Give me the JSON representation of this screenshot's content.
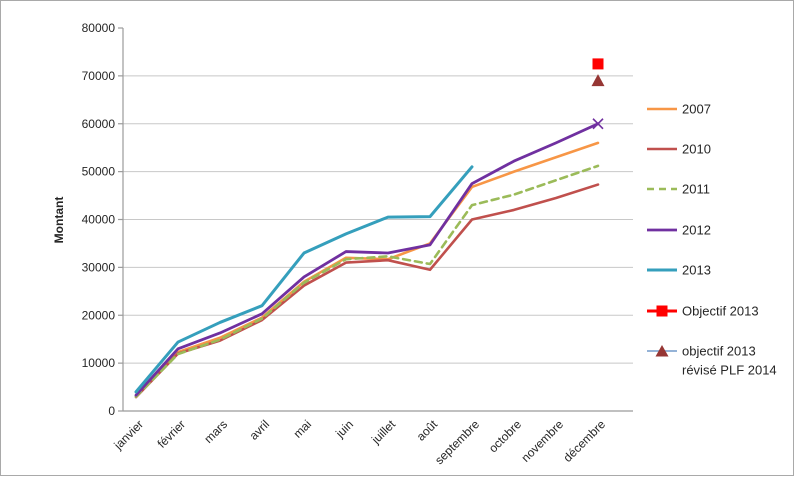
{
  "figure": {
    "background": "#FFFFFF",
    "border_color": "#A9A9A9",
    "axis_color": "#9B9B9B",
    "gridline_color": "#C8C8C8",
    "text_color": "#262626"
  },
  "chart_data": {
    "type": "line",
    "title": "",
    "xlabel": "",
    "ylabel": "Montant",
    "ylim": [
      0,
      80000
    ],
    "ytick_step": 10000,
    "ytick_labels": [
      "0",
      "10000",
      "20000",
      "30000",
      "40000",
      "50000",
      "60000",
      "70000",
      "80000"
    ],
    "grid": true,
    "legend_position": "right",
    "categories": [
      "janvier",
      "février",
      "mars",
      "avril",
      "mai",
      "juin",
      "juillet",
      "août",
      "septembre",
      "octobre",
      "novembre",
      "décembre"
    ],
    "series": [
      {
        "name": "2007",
        "color": "#F79646",
        "dash": "solid",
        "width": 2.6,
        "values": [
          3100,
          12300,
          15300,
          19500,
          27000,
          32000,
          31700,
          35000,
          46800,
          50000,
          53000,
          56000
        ]
      },
      {
        "name": "2010",
        "color": "#C0504D",
        "dash": "solid",
        "width": 2.6,
        "values": [
          2900,
          12000,
          14700,
          19000,
          26200,
          31000,
          31500,
          29500,
          40000,
          42000,
          44500,
          47300
        ]
      },
      {
        "name": "2011",
        "color": "#9BBB59",
        "dash": "dashed",
        "width": 2.6,
        "values": [
          3000,
          11900,
          14900,
          19300,
          26800,
          31700,
          32300,
          30700,
          43000,
          45200,
          48200,
          51200
        ]
      },
      {
        "name": "2012",
        "color": "#7030A0",
        "dash": "solid",
        "width": 2.8,
        "end_marker": "x",
        "values": [
          3300,
          13000,
          16300,
          20300,
          28000,
          33300,
          33000,
          34700,
          47500,
          52200,
          56000,
          60000
        ]
      },
      {
        "name": "2013",
        "color": "#359FBC",
        "dash": "solid",
        "width": 3,
        "values": [
          4000,
          14400,
          18500,
          22000,
          33000,
          37000,
          40500,
          40600,
          51000
        ]
      }
    ],
    "point_series": [
      {
        "name": "Objectif  2013",
        "legend_lines": [
          "Objectif  2013"
        ],
        "category": "décembre",
        "value": 72500,
        "marker": "square",
        "marker_color": "#FF0000",
        "line_color": "#FF0000"
      },
      {
        "name": "objectif 2013 révisé PLF 2014",
        "legend_lines": [
          "objectif 2013",
          "révisé PLF 2014"
        ],
        "category": "décembre",
        "value": 69000,
        "marker": "triangle",
        "marker_color": "#963634",
        "line_color": "#95B3D7"
      }
    ]
  }
}
